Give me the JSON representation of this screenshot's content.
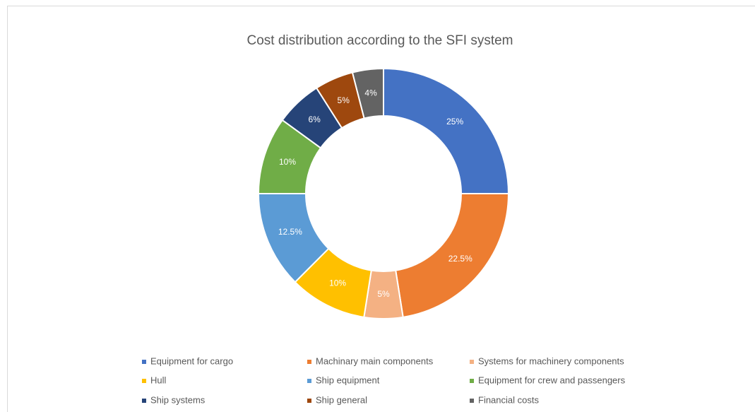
{
  "chart_data": {
    "type": "donut",
    "title": "Cost distribution according to the SFI system",
    "categories": [
      "Equipment for cargo",
      "Machinary main components",
      "Systems for machinery components",
      "Hull",
      "Ship equipment",
      "Equipment for crew and passengers",
      "Ship systems",
      "Ship general",
      "Financial costs"
    ],
    "values": [
      25,
      22.5,
      5,
      10,
      12.5,
      10,
      6,
      5,
      4
    ],
    "value_labels": [
      "25%",
      "22.5%",
      "5%",
      "10%",
      "12.5%",
      "10%",
      "6%",
      "5%",
      "4%"
    ],
    "colors": [
      "#4472c4",
      "#ed7d31",
      "#f4b183",
      "#ffc000",
      "#5b9bd5",
      "#70ad47",
      "#264478",
      "#9e480e",
      "#636363"
    ],
    "legend": "bottom"
  }
}
